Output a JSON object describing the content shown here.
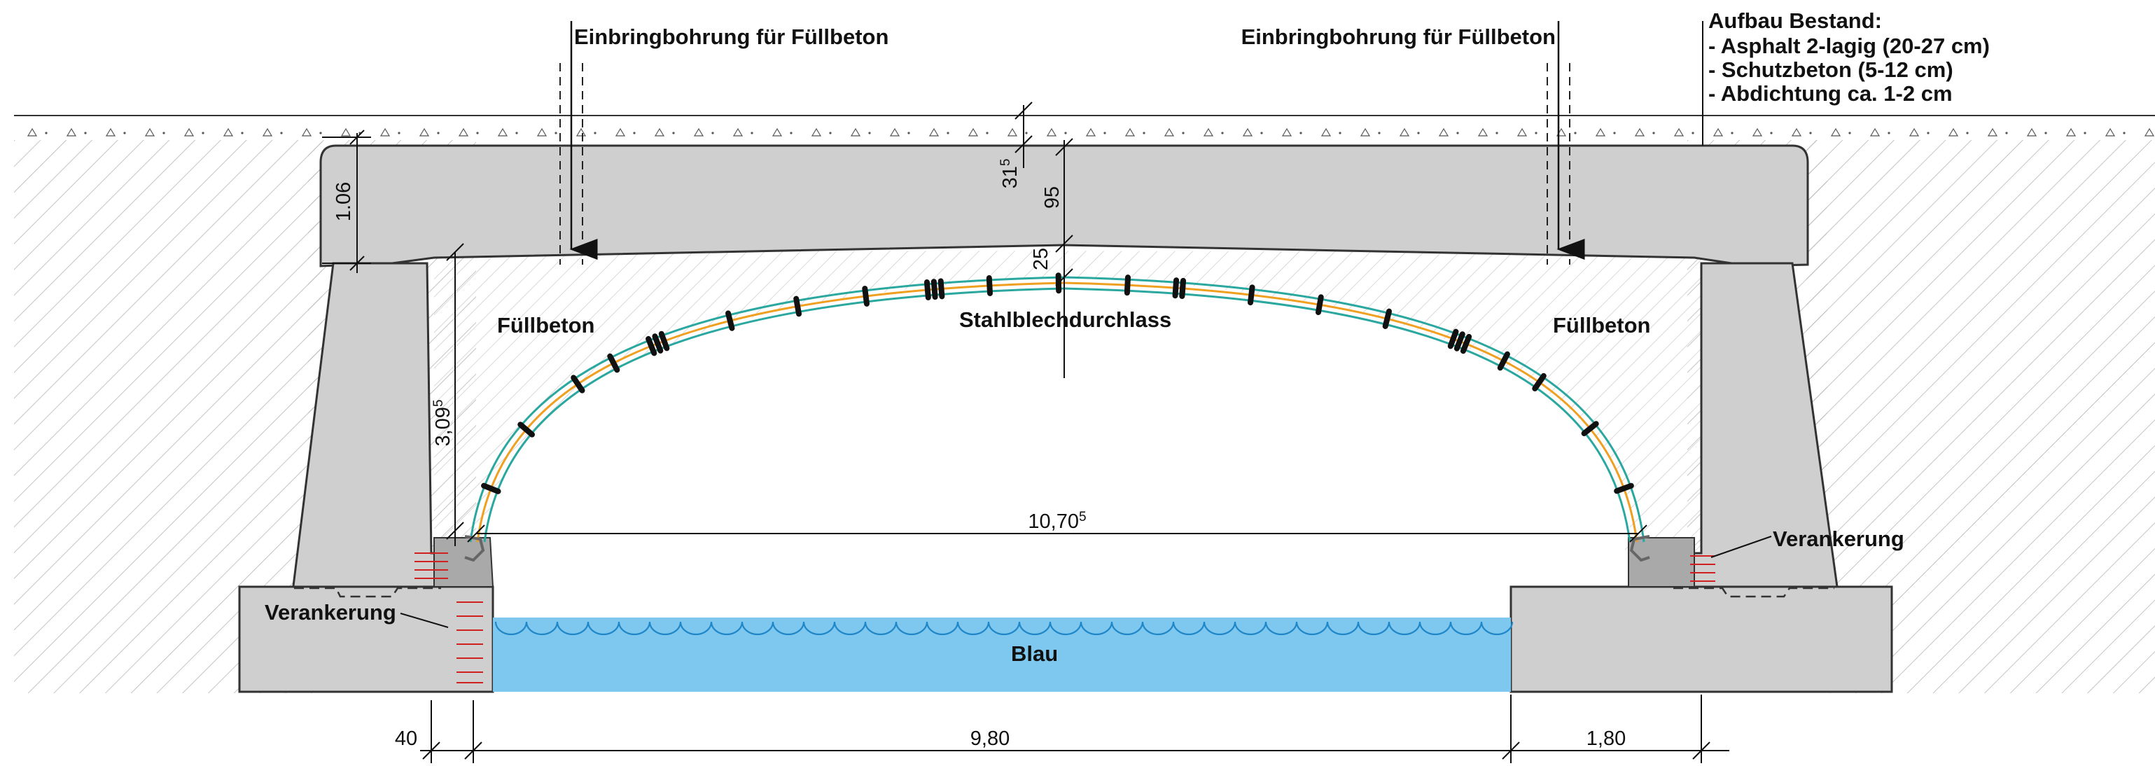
{
  "labels": {
    "inlet_left": "Einbringbohrung für Füllbeton",
    "inlet_right": "Einbringbohrung für Füllbeton",
    "structure_title": "Aufbau Bestand:",
    "structure_items": [
      "- Asphalt 2-lagig (20-27 cm)",
      "- Schutzbeton (5-12 cm)",
      "- Abdichtung ca. 1-2 cm"
    ],
    "fill_left": "Füllbeton",
    "fill_right": "Füllbeton",
    "culvert": "Stahlblechdurchlass",
    "anchor_left": "Verankerung",
    "anchor_right": "Verankerung",
    "water": "Blau"
  },
  "dimensions": {
    "deck_thickness": "1.06",
    "cover_main": "31",
    "cover_sup": "5",
    "deck_mid": "95",
    "arch_clearance": "25",
    "arch_height_main": "3,09",
    "arch_height_sup": "5",
    "arch_span_main": "10,70",
    "arch_span_sup": "5",
    "left_offset": "40",
    "clear_span": "9,80",
    "right_width": "1,80"
  },
  "colors": {
    "concrete": "#cfcfcf",
    "concrete_stroke": "#333333",
    "water": "#7ec8ef",
    "water_wave": "#1f86c8",
    "arch_outer": "#2aa8a0",
    "arch_inner": "#f0a020",
    "anchor": "#d12020",
    "hatch": "#b5b5b5"
  }
}
